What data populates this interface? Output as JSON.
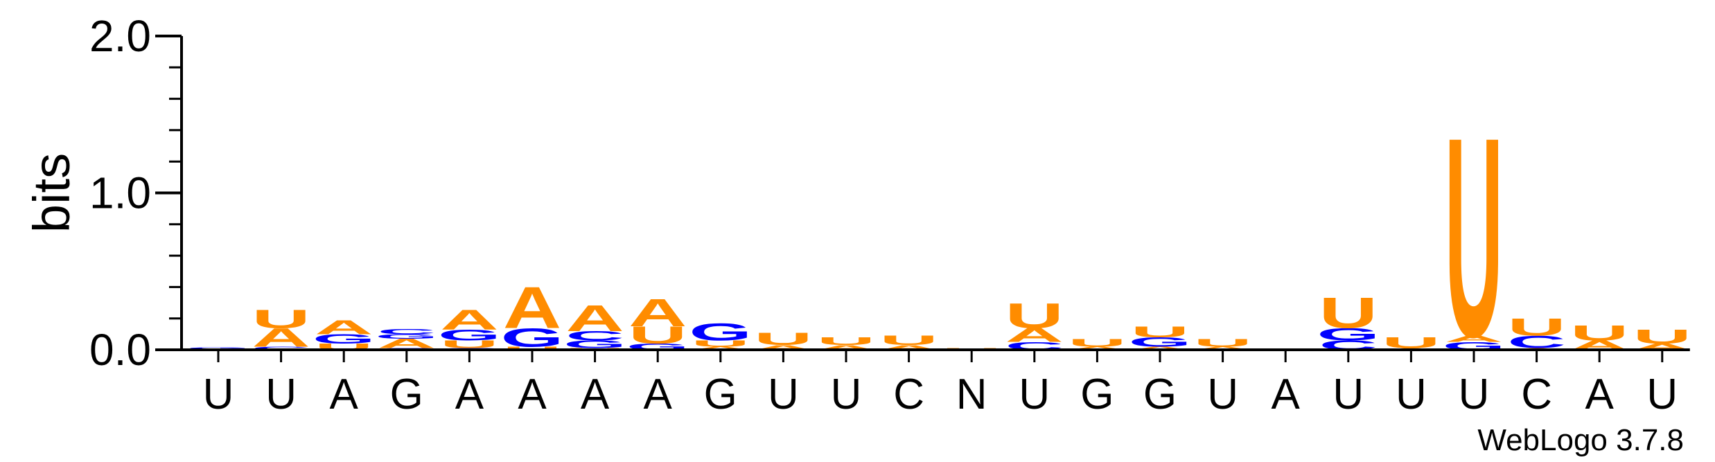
{
  "chart_data": {
    "type": "sequence-logo",
    "ylabel": "bits",
    "ylim": [
      0,
      2.0
    ],
    "yticks": [
      "0.0",
      "1.0",
      "2.0"
    ],
    "colors": {
      "A": "#ff8c00",
      "U": "#ff8c00",
      "G": "#0000ff",
      "C": "#0000ff",
      "N": "#000000"
    },
    "positions": [
      {
        "label": "U",
        "stack": [
          {
            "l": "C",
            "h": 0.005
          },
          {
            "l": "G",
            "h": 0.01
          }
        ]
      },
      {
        "label": "U",
        "stack": [
          {
            "l": "C",
            "h": 0.02
          },
          {
            "l": "A",
            "h": 0.12
          },
          {
            "l": "U",
            "h": 0.12
          }
        ]
      },
      {
        "label": "A",
        "stack": [
          {
            "l": "U",
            "h": 0.04
          },
          {
            "l": "G",
            "h": 0.06
          },
          {
            "l": "A",
            "h": 0.09
          }
        ]
      },
      {
        "label": "G",
        "stack": [
          {
            "l": "C",
            "h": 0.01
          },
          {
            "l": "A",
            "h": 0.06
          },
          {
            "l": "G",
            "h": 0.03
          },
          {
            "l": "C",
            "h": 0.035
          }
        ]
      },
      {
        "label": "A",
        "stack": [
          {
            "l": "C",
            "h": 0.01
          },
          {
            "l": "U",
            "h": 0.05
          },
          {
            "l": "G",
            "h": 0.07
          },
          {
            "l": "A",
            "h": 0.13
          }
        ]
      },
      {
        "label": "A",
        "stack": [
          {
            "l": "U",
            "h": 0.02
          },
          {
            "l": "G",
            "h": 0.12
          },
          {
            "l": "A",
            "h": 0.27
          }
        ]
      },
      {
        "label": "A",
        "stack": [
          {
            "l": "U",
            "h": 0.01
          },
          {
            "l": "G",
            "h": 0.05
          },
          {
            "l": "C",
            "h": 0.06
          },
          {
            "l": "A",
            "h": 0.17
          }
        ]
      },
      {
        "label": "A",
        "stack": [
          {
            "l": "G",
            "h": 0.04
          },
          {
            "l": "U",
            "h": 0.11
          },
          {
            "l": "A",
            "h": 0.18
          }
        ]
      },
      {
        "label": "G",
        "stack": [
          {
            "l": "A",
            "h": 0.02
          },
          {
            "l": "U",
            "h": 0.04
          },
          {
            "l": "G",
            "h": 0.11
          }
        ]
      },
      {
        "label": "U",
        "stack": [
          {
            "l": "A",
            "h": 0.03
          },
          {
            "l": "U",
            "h": 0.08
          }
        ]
      },
      {
        "label": "U",
        "stack": [
          {
            "l": "A",
            "h": 0.03
          },
          {
            "l": "U",
            "h": 0.05
          }
        ]
      },
      {
        "label": "C",
        "stack": [
          {
            "l": "A",
            "h": 0.03
          },
          {
            "l": "U",
            "h": 0.06
          }
        ]
      },
      {
        "label": "N",
        "stack": [
          {
            "l": "U",
            "h": 0.01
          }
        ]
      },
      {
        "label": "U",
        "stack": [
          {
            "l": "C",
            "h": 0.05
          },
          {
            "l": "A",
            "h": 0.09
          },
          {
            "l": "U",
            "h": 0.16
          }
        ]
      },
      {
        "label": "G",
        "stack": [
          {
            "l": "A",
            "h": 0.02
          },
          {
            "l": "U",
            "h": 0.05
          }
        ]
      },
      {
        "label": "G",
        "stack": [
          {
            "l": "A",
            "h": 0.02
          },
          {
            "l": "G",
            "h": 0.06
          },
          {
            "l": "U",
            "h": 0.07
          }
        ]
      },
      {
        "label": "U",
        "stack": [
          {
            "l": "A",
            "h": 0.02
          },
          {
            "l": "U",
            "h": 0.05
          }
        ]
      },
      {
        "label": "A",
        "stack": []
      },
      {
        "label": "U",
        "stack": [
          {
            "l": "C",
            "h": 0.06
          },
          {
            "l": "G",
            "h": 0.08
          },
          {
            "l": "U",
            "h": 0.2
          }
        ]
      },
      {
        "label": "U",
        "stack": [
          {
            "l": "A",
            "h": 0.01
          },
          {
            "l": "U",
            "h": 0.07
          }
        ]
      },
      {
        "label": "U",
        "stack": [
          {
            "l": "G",
            "h": 0.05
          },
          {
            "l": "A",
            "h": 0.04
          },
          {
            "l": "U",
            "h": 1.3
          }
        ]
      },
      {
        "label": "C",
        "stack": [
          {
            "l": "A",
            "h": 0.01
          },
          {
            "l": "C",
            "h": 0.08
          },
          {
            "l": "U",
            "h": 0.11
          }
        ]
      },
      {
        "label": "A",
        "stack": [
          {
            "l": "A",
            "h": 0.06
          },
          {
            "l": "U",
            "h": 0.1
          }
        ]
      },
      {
        "label": "U",
        "stack": [
          {
            "l": "A",
            "h": 0.04
          },
          {
            "l": "U",
            "h": 0.09
          }
        ]
      }
    ]
  },
  "footer": "WebLogo 3.7.8"
}
